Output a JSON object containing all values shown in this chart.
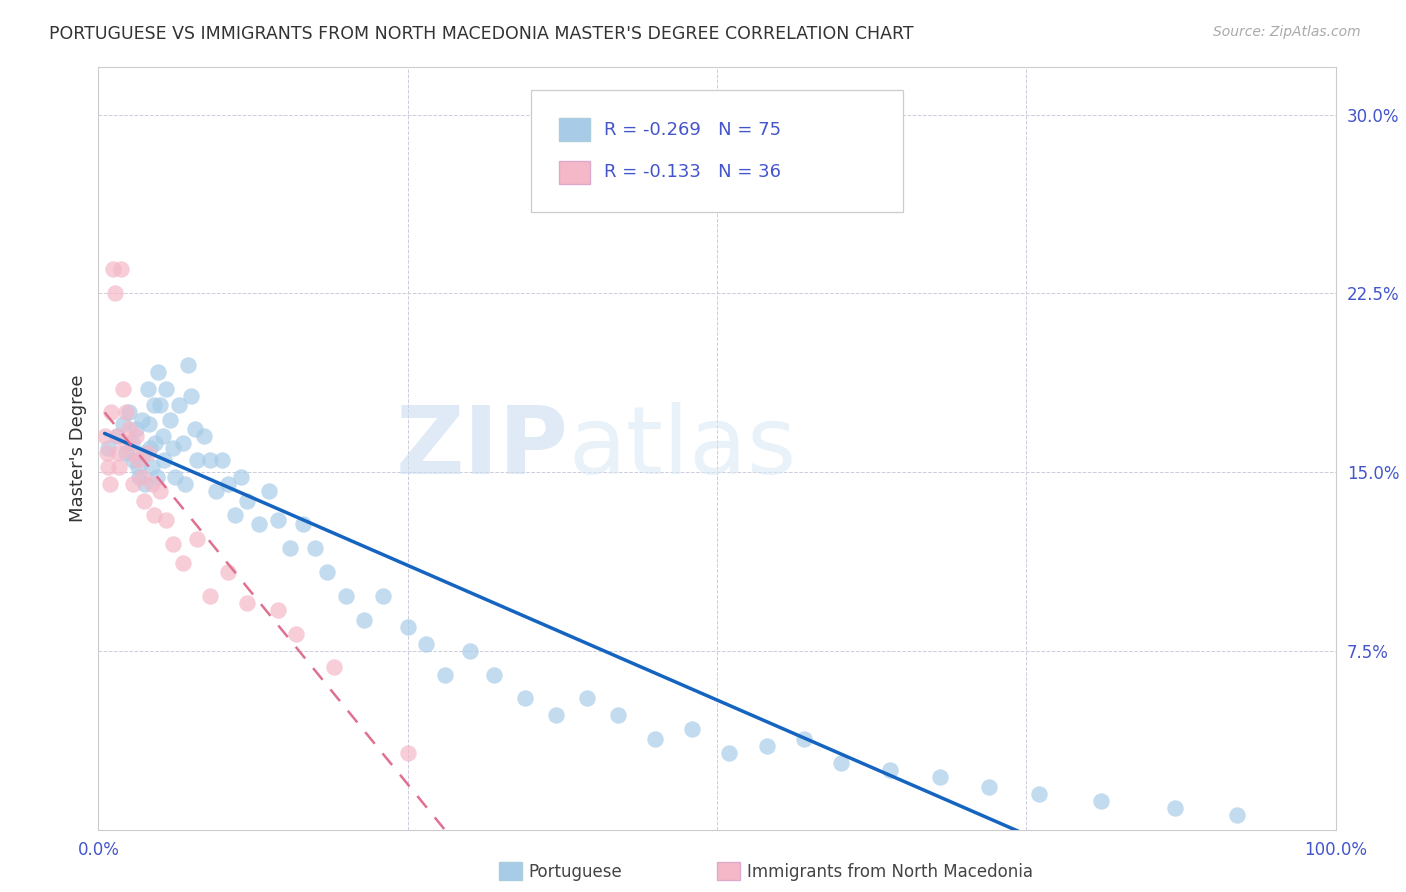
{
  "title": "PORTUGUESE VS IMMIGRANTS FROM NORTH MACEDONIA MASTER'S DEGREE CORRELATION CHART",
  "source": "Source: ZipAtlas.com",
  "ylabel": "Master's Degree",
  "xlim": [
    0.0,
    1.0
  ],
  "ylim": [
    0.0,
    0.32
  ],
  "xticks": [
    0.0,
    0.25,
    0.5,
    0.75,
    1.0
  ],
  "xticklabels": [
    "0.0%",
    "",
    "",
    "",
    "100.0%"
  ],
  "yticks": [
    0.075,
    0.15,
    0.225,
    0.3
  ],
  "yticklabels": [
    "7.5%",
    "15.0%",
    "22.5%",
    "30.0%"
  ],
  "R_blue": -0.269,
  "N_blue": 75,
  "R_pink": -0.133,
  "N_pink": 36,
  "color_blue": "#a8cce8",
  "color_pink": "#f4b8c8",
  "line_blue": "#1565c0",
  "line_pink": "#e07090",
  "watermark_zip": "ZIP",
  "watermark_atlas": "atlas",
  "legend_label_blue": "Portuguese",
  "legend_label_pink": "Immigrants from North Macedonia",
  "blue_x": [
    0.008,
    0.015,
    0.02,
    0.022,
    0.025,
    0.027,
    0.028,
    0.03,
    0.032,
    0.033,
    0.035,
    0.037,
    0.038,
    0.04,
    0.041,
    0.042,
    0.043,
    0.045,
    0.046,
    0.047,
    0.048,
    0.05,
    0.052,
    0.053,
    0.055,
    0.058,
    0.06,
    0.062,
    0.065,
    0.068,
    0.07,
    0.072,
    0.075,
    0.078,
    0.08,
    0.085,
    0.09,
    0.095,
    0.1,
    0.105,
    0.11,
    0.115,
    0.12,
    0.13,
    0.138,
    0.145,
    0.155,
    0.165,
    0.175,
    0.185,
    0.2,
    0.215,
    0.23,
    0.25,
    0.265,
    0.28,
    0.3,
    0.32,
    0.345,
    0.37,
    0.395,
    0.42,
    0.45,
    0.48,
    0.51,
    0.54,
    0.57,
    0.6,
    0.64,
    0.68,
    0.72,
    0.76,
    0.81,
    0.87,
    0.92
  ],
  "blue_y": [
    0.16,
    0.165,
    0.17,
    0.158,
    0.175,
    0.162,
    0.155,
    0.168,
    0.152,
    0.148,
    0.172,
    0.158,
    0.145,
    0.185,
    0.17,
    0.16,
    0.152,
    0.178,
    0.162,
    0.148,
    0.192,
    0.178,
    0.165,
    0.155,
    0.185,
    0.172,
    0.16,
    0.148,
    0.178,
    0.162,
    0.145,
    0.195,
    0.182,
    0.168,
    0.155,
    0.165,
    0.155,
    0.142,
    0.155,
    0.145,
    0.132,
    0.148,
    0.138,
    0.128,
    0.142,
    0.13,
    0.118,
    0.128,
    0.118,
    0.108,
    0.098,
    0.088,
    0.098,
    0.085,
    0.078,
    0.065,
    0.075,
    0.065,
    0.055,
    0.048,
    0.055,
    0.048,
    0.038,
    0.042,
    0.032,
    0.035,
    0.038,
    0.028,
    0.025,
    0.022,
    0.018,
    0.015,
    0.012,
    0.009,
    0.006
  ],
  "pink_x": [
    0.005,
    0.007,
    0.008,
    0.009,
    0.01,
    0.012,
    0.013,
    0.015,
    0.016,
    0.017,
    0.018,
    0.02,
    0.022,
    0.023,
    0.025,
    0.027,
    0.028,
    0.03,
    0.032,
    0.035,
    0.037,
    0.04,
    0.043,
    0.045,
    0.05,
    0.055,
    0.06,
    0.068,
    0.08,
    0.09,
    0.105,
    0.12,
    0.145,
    0.16,
    0.19,
    0.25
  ],
  "pink_y": [
    0.165,
    0.158,
    0.152,
    0.145,
    0.175,
    0.235,
    0.225,
    0.165,
    0.158,
    0.152,
    0.235,
    0.185,
    0.175,
    0.162,
    0.168,
    0.158,
    0.145,
    0.165,
    0.155,
    0.148,
    0.138,
    0.158,
    0.145,
    0.132,
    0.142,
    0.13,
    0.12,
    0.112,
    0.122,
    0.098,
    0.108,
    0.095,
    0.092,
    0.082,
    0.068,
    0.032
  ],
  "blue_line_x0": 0.005,
  "blue_line_x1": 1.0,
  "pink_line_x0": 0.005,
  "pink_line_x1": 0.5
}
